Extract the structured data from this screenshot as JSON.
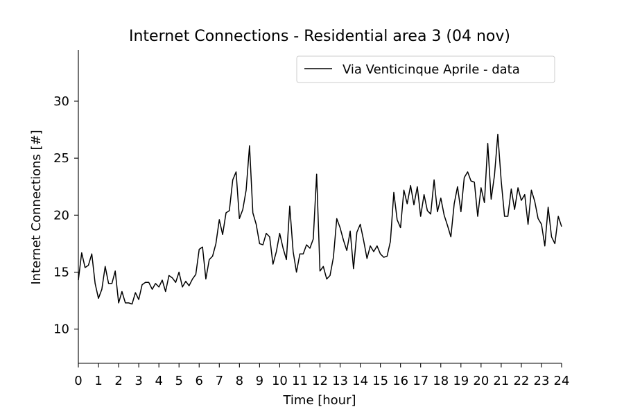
{
  "chart_data": {
    "type": "line",
    "title": "Internet Connections - Residential area 3 (04 nov)",
    "xlabel": "Time [hour]",
    "ylabel": "Internet Connections [#]",
    "xlim": [
      0,
      24
    ],
    "ylim": [
      7,
      34.5
    ],
    "xticks": [
      0,
      1,
      2,
      3,
      4,
      5,
      6,
      7,
      8,
      9,
      10,
      11,
      12,
      13,
      14,
      15,
      16,
      17,
      18,
      19,
      20,
      21,
      22,
      23,
      24
    ],
    "yticks": [
      10,
      15,
      20,
      25,
      30
    ],
    "grid": false,
    "legend_position": "top-right",
    "series": [
      {
        "name": "Via Venticinque Aprile - data",
        "color": "#000000",
        "x": [
          0,
          0.167,
          0.333,
          0.5,
          0.667,
          0.833,
          1,
          1.167,
          1.333,
          1.5,
          1.667,
          1.833,
          2,
          2.167,
          2.333,
          2.5,
          2.667,
          2.833,
          3,
          3.167,
          3.333,
          3.5,
          3.667,
          3.833,
          4,
          4.167,
          4.333,
          4.5,
          4.667,
          4.833,
          5,
          5.167,
          5.333,
          5.5,
          5.667,
          5.833,
          6,
          6.167,
          6.333,
          6.5,
          6.667,
          6.833,
          7,
          7.167,
          7.333,
          7.5,
          7.667,
          7.833,
          8,
          8.167,
          8.333,
          8.5,
          8.667,
          8.833,
          9,
          9.167,
          9.333,
          9.5,
          9.667,
          9.833,
          10,
          10.167,
          10.333,
          10.5,
          10.667,
          10.833,
          11,
          11.167,
          11.333,
          11.5,
          11.667,
          11.833,
          12,
          12.167,
          12.333,
          12.5,
          12.667,
          12.833,
          13,
          13.167,
          13.333,
          13.5,
          13.667,
          13.833,
          14,
          14.167,
          14.333,
          14.5,
          14.667,
          14.833,
          15,
          15.167,
          15.333,
          15.5,
          15.667,
          15.833,
          16,
          16.167,
          16.333,
          16.5,
          16.667,
          16.833,
          17,
          17.167,
          17.333,
          17.5,
          17.667,
          17.833,
          18,
          18.167,
          18.333,
          18.5,
          18.667,
          18.833,
          19,
          19.167,
          19.333,
          19.5,
          19.667,
          19.833,
          20,
          20.167,
          20.333,
          20.5,
          20.667,
          20.833,
          21,
          21.167,
          21.333,
          21.5,
          21.667,
          21.833,
          22,
          22.167,
          22.333,
          22.5,
          22.667,
          22.833,
          23,
          23.167,
          23.333,
          23.5,
          23.667,
          23.833,
          24
        ],
        "y": [
          14.3,
          16.7,
          15.4,
          15.6,
          16.6,
          14.0,
          12.7,
          13.5,
          15.5,
          14.0,
          14.0,
          15.1,
          12.3,
          13.3,
          12.3,
          12.3,
          12.2,
          13.2,
          12.6,
          13.9,
          14.1,
          14.1,
          13.5,
          14.0,
          13.7,
          14.3,
          13.3,
          14.7,
          14.5,
          14.1,
          15.0,
          13.7,
          14.2,
          13.8,
          14.4,
          14.8,
          17.0,
          17.2,
          14.4,
          16.1,
          16.4,
          17.5,
          19.6,
          18.3,
          20.2,
          20.4,
          23.1,
          23.8,
          19.7,
          20.5,
          22.2,
          26.1,
          20.2,
          19.2,
          17.5,
          17.4,
          18.4,
          18.1,
          15.7,
          16.8,
          18.4,
          17.1,
          16.1,
          20.8,
          16.8,
          15.0,
          16.6,
          16.6,
          17.4,
          17.1,
          17.9,
          23.6,
          15.1,
          15.5,
          14.4,
          14.7,
          16.3,
          19.7,
          18.9,
          17.8,
          16.9,
          18.6,
          15.3,
          18.5,
          19.2,
          17.8,
          16.2,
          17.3,
          16.8,
          17.3,
          16.6,
          16.3,
          16.4,
          17.7,
          22.0,
          19.6,
          18.9,
          22.2,
          21.0,
          22.6,
          20.9,
          22.5,
          19.9,
          21.8,
          20.4,
          20.1,
          23.1,
          20.3,
          21.5,
          20.0,
          19.1,
          18.1,
          21.0,
          22.5,
          20.3,
          23.3,
          23.8,
          23.0,
          22.9,
          19.9,
          22.4,
          21.1,
          26.3,
          21.4,
          23.5,
          27.1,
          23.0,
          19.9,
          19.9,
          22.3,
          20.5,
          22.4,
          21.3,
          21.8,
          19.2,
          22.2,
          21.2,
          19.7,
          19.2,
          17.3,
          20.7,
          18.1,
          17.5,
          19.9,
          19.0
        ]
      }
    ]
  }
}
